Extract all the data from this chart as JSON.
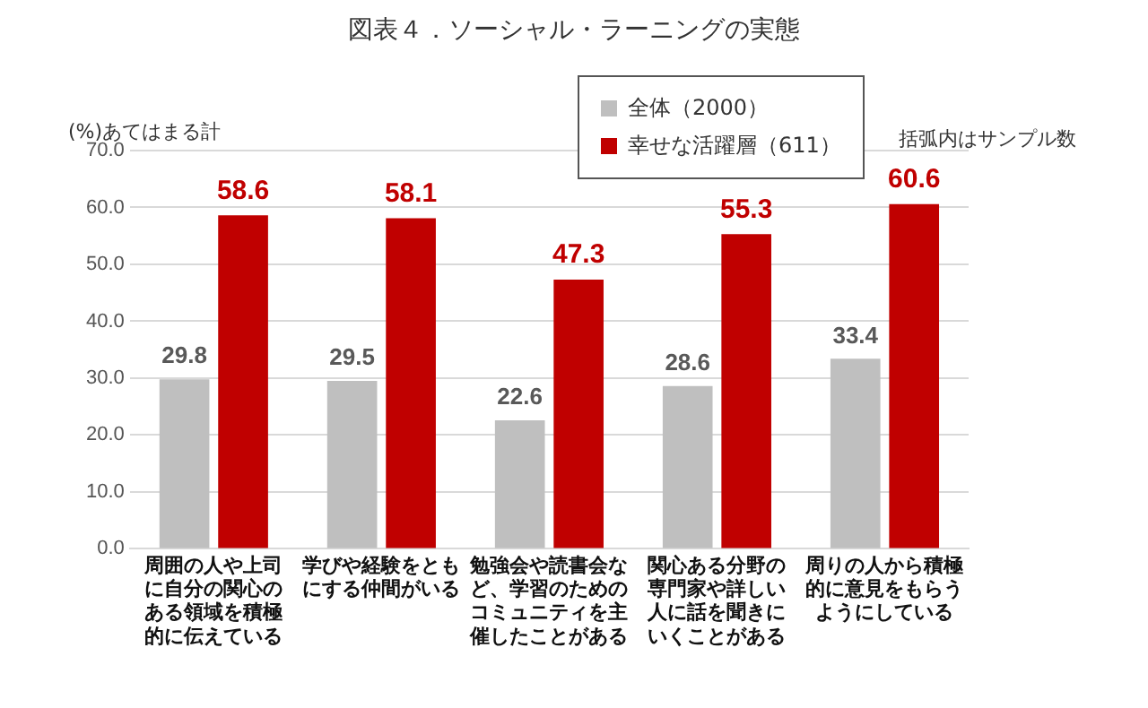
{
  "chart_data": {
    "type": "bar",
    "title": "図表４．ソーシャル・ラーニングの実態",
    "ylabel": "(%)あてはまる計",
    "annotations": [
      "括弧内はサンプル数"
    ],
    "categories": [
      "周囲の人や上司に自分の関心のある領域を積極的に伝えている",
      "学びや経験をともにする仲間がいる",
      "勉強会や読書会など、学習のためのコミュニティを主催したことがある",
      "関心ある分野の専門家や詳しい人に話を聞きにいくことがある",
      "周りの人から積極的に意見をもらうようにしている"
    ],
    "series": [
      {
        "name": "全体（2000）",
        "color": "#bfbfbf",
        "values": [
          29.8,
          29.5,
          22.6,
          28.6,
          33.4
        ]
      },
      {
        "name": "幸せな活躍層（611）",
        "color": "#c00000",
        "values": [
          58.6,
          58.1,
          47.3,
          55.3,
          60.6
        ]
      }
    ],
    "ylim": [
      0,
      70
    ],
    "yticks": [
      {
        "value": 0,
        "label": "0.0"
      },
      {
        "value": 10,
        "label": "10.0"
      },
      {
        "value": 20,
        "label": "20.0"
      },
      {
        "value": 30,
        "label": "30.0"
      },
      {
        "value": 40,
        "label": "40.0"
      },
      {
        "value": 50,
        "label": "50.0"
      },
      {
        "value": 60,
        "label": "60.0"
      },
      {
        "value": 70,
        "label": "70.0"
      }
    ],
    "grid": "y",
    "legend": "top",
    "data_labels": true
  }
}
